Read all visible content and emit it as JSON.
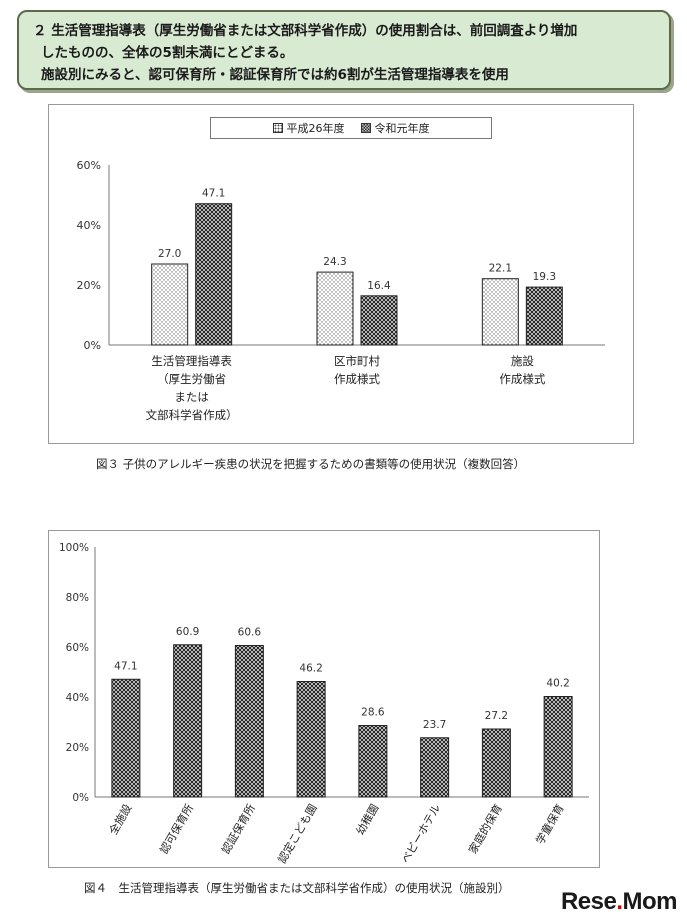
{
  "header": {
    "line1": "２ 生活管理指導表（厚生労働省または文部科学省作成）の使用割合は、前回調査より増加",
    "line2": "したものの、全体の5割未満にとどまる。",
    "line3": "施設別にみると、認可保育所・認証保育所では約6割が生活管理指導表を使用"
  },
  "figure3": {
    "caption": "図３ 子供のアレルギー疾患の状況を把握するための書類等の使用状況（複数回答）"
  },
  "figure4": {
    "caption": "図４　生活管理指導表（厚生労働省または文部科学省作成）の使用状況（施設別）"
  },
  "watermark": {
    "text_a": "Rese",
    "text_b": "Mom",
    "dot": "."
  },
  "chart_data": [
    {
      "type": "bar",
      "categories": [
        [
          "生活管理指導表",
          "（厚生労働省",
          "または",
          "文部科学省作成）"
        ],
        [
          "区市町村",
          "作成様式"
        ],
        [
          "施設",
          "作成様式"
        ]
      ],
      "series": [
        {
          "name": "平成26年度",
          "values": [
            27.0,
            24.3,
            22.1
          ],
          "pattern": "dots-light"
        },
        {
          "name": "令和元年度",
          "values": [
            47.1,
            16.4,
            19.3
          ],
          "pattern": "checker-dark"
        }
      ],
      "ylim": [
        0,
        60
      ],
      "yticks": [
        "0%",
        "20%",
        "40%",
        "60%"
      ],
      "ytick_values": [
        0,
        20,
        40,
        60
      ],
      "legend": "top-center",
      "grid": false
    },
    {
      "type": "bar",
      "categories": [
        "全施設",
        "認可保育所",
        "認証保育所",
        "認定こども園",
        "幼稚園",
        "ベビーホテル",
        "家庭的保育",
        "学童保育"
      ],
      "series": [
        {
          "values": [
            47.1,
            60.9,
            60.6,
            46.2,
            28.6,
            23.7,
            27.2,
            40.2
          ],
          "pattern": "checker-dark"
        }
      ],
      "ylim": [
        0,
        100
      ],
      "yticks": [
        "0%",
        "20%",
        "40%",
        "60%",
        "80%",
        "100%"
      ],
      "ytick_values": [
        0,
        20,
        40,
        60,
        80,
        100
      ],
      "grid": false
    }
  ]
}
